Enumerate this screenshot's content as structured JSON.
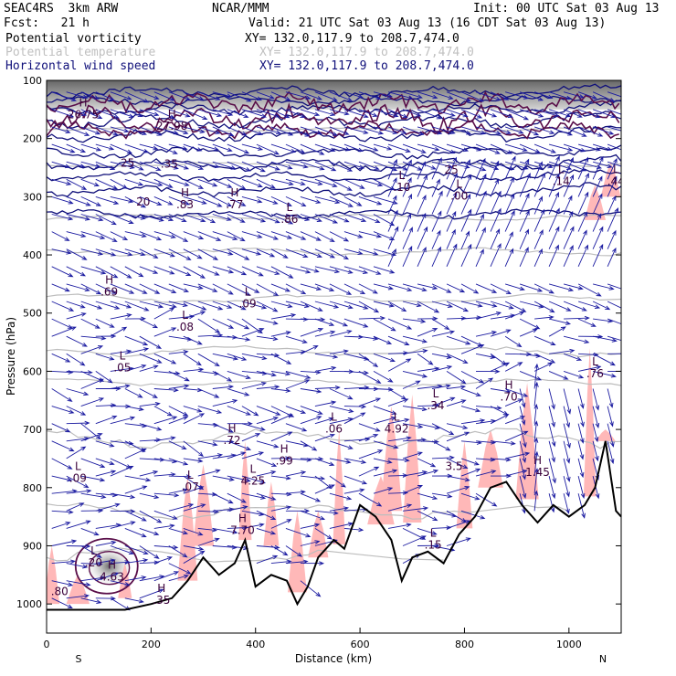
{
  "header": {
    "model": "SEAC4RS  3km ARW",
    "org": "NCAR/MMM",
    "init": "Init: 00 UTC Sat 03 Aug 13",
    "fcst": "Fcst:   21 h",
    "valid": "Valid: 21 UTC Sat 03 Aug 13 (16 CDT Sat 03 Aug 13)",
    "fields": [
      {
        "name": "Potential vorticity",
        "xy": "XY= 132.0,117.9 to 208.7,474.0",
        "color": "#3a003a",
        "text_color": "#000000"
      },
      {
        "name": "Potential temperature",
        "xy": "XY= 132.0,117.9 to 208.7,474.0",
        "color": "#c0c0c0",
        "text_color": "#c0c0c0"
      },
      {
        "name": "Horizontal wind speed",
        "xy": "XY= 132.0,117.9 to 208.7,474.0",
        "color": "#10107a",
        "text_color": "#10107a"
      }
    ]
  },
  "chart_data": {
    "type": "cross-section",
    "xlabel": "Distance (km)",
    "ylabel": "Pressure (hPa)",
    "xlim": [
      0,
      1100
    ],
    "ylim": [
      1050,
      100
    ],
    "x_ticks": [
      0,
      200,
      400,
      600,
      800,
      1000
    ],
    "y_ticks": [
      100,
      200,
      300,
      400,
      500,
      600,
      700,
      800,
      900,
      1000
    ],
    "end_labels": {
      "left": "S",
      "right": "N"
    },
    "terrain_surface": [
      [
        0,
        1010
      ],
      [
        150,
        1010
      ],
      [
        200,
        1000
      ],
      [
        240,
        990
      ],
      [
        270,
        960
      ],
      [
        300,
        920
      ],
      [
        330,
        950
      ],
      [
        360,
        930
      ],
      [
        380,
        890
      ],
      [
        400,
        970
      ],
      [
        430,
        950
      ],
      [
        460,
        960
      ],
      [
        480,
        1000
      ],
      [
        500,
        970
      ],
      [
        520,
        920
      ],
      [
        550,
        890
      ],
      [
        570,
        905
      ],
      [
        600,
        830
      ],
      [
        630,
        850
      ],
      [
        660,
        890
      ],
      [
        680,
        960
      ],
      [
        700,
        920
      ],
      [
        730,
        910
      ],
      [
        760,
        930
      ],
      [
        790,
        880
      ],
      [
        820,
        850
      ],
      [
        850,
        800
      ],
      [
        880,
        790
      ],
      [
        910,
        830
      ],
      [
        940,
        860
      ],
      [
        970,
        830
      ],
      [
        1000,
        850
      ],
      [
        1030,
        830
      ],
      [
        1050,
        800
      ],
      [
        1070,
        720
      ],
      [
        1090,
        840
      ],
      [
        1100,
        850
      ]
    ],
    "pv_labels": [
      {
        "t": "H",
        "v": "26.75",
        "x": 70,
        "p": 165
      },
      {
        "t": "H",
        "v": "27.98",
        "x": 240,
        "p": 185
      },
      {
        "t": "",
        "v": "25",
        "x": 155,
        "p": 248
      },
      {
        "t": "",
        "v": ".35",
        "x": 235,
        "p": 250
      },
      {
        "t": "",
        "v": "20",
        "x": 185,
        "p": 315
      },
      {
        "t": "H",
        "v": ".83",
        "x": 265,
        "p": 320
      },
      {
        "t": "H",
        "v": ".77",
        "x": 360,
        "p": 320
      },
      {
        "t": "L",
        "v": ".86",
        "x": 465,
        "p": 345
      },
      {
        "t": "L",
        "v": ".10",
        "x": 680,
        "p": 290
      },
      {
        "t": "L",
        "v": ".00",
        "x": 790,
        "p": 305
      },
      {
        "t": "",
        "v": "25",
        "x": 775,
        "p": 260
      },
      {
        "t": "L",
        "v": ".14",
        "x": 985,
        "p": 280
      },
      {
        "t": "L",
        "v": ".44",
        "x": 1090,
        "p": 280
      },
      {
        "t": "H",
        "v": ".69",
        "x": 120,
        "p": 470
      },
      {
        "t": "L",
        "v": ".09",
        "x": 385,
        "p": 490
      },
      {
        "t": "L",
        "v": ".08",
        "x": 265,
        "p": 530
      },
      {
        "t": "L",
        "v": ".05",
        "x": 145,
        "p": 600
      },
      {
        "t": "L",
        "v": ".06",
        "x": 550,
        "p": 705
      },
      {
        "t": "L",
        "v": "4.92",
        "x": 670,
        "p": 705
      },
      {
        "t": "L",
        "v": ".34",
        "x": 745,
        "p": 665
      },
      {
        "t": "H",
        "v": ".70",
        "x": 885,
        "p": 650
      },
      {
        "t": "L",
        "v": ".76",
        "x": 1050,
        "p": 610
      },
      {
        "t": "H",
        "v": ".72",
        "x": 355,
        "p": 725
      },
      {
        "t": "H",
        "v": ".99",
        "x": 455,
        "p": 760
      },
      {
        "t": "L",
        "v": "4.25",
        "x": 395,
        "p": 795
      },
      {
        "t": "",
        "v": "3.5",
        "x": 780,
        "p": 770
      },
      {
        "t": "H",
        "v": "1.45",
        "x": 940,
        "p": 780
      },
      {
        "t": "L",
        "v": ".09",
        "x": 60,
        "p": 790
      },
      {
        "t": "L",
        "v": ".07",
        "x": 275,
        "p": 805
      },
      {
        "t": "H",
        "v": "7.70",
        "x": 375,
        "p": 880
      },
      {
        "t": "L",
        "v": ".15",
        "x": 740,
        "p": 905
      },
      {
        "t": "L",
        "v": ".20",
        "x": 90,
        "p": 935
      },
      {
        "t": "H",
        "v": "4.63",
        "x": 125,
        "p": 960
      },
      {
        "t": "",
        "v": ".80",
        "x": 25,
        "p": 985
      },
      {
        "t": "H",
        "v": ".35",
        "x": 220,
        "p": 1000
      }
    ]
  }
}
